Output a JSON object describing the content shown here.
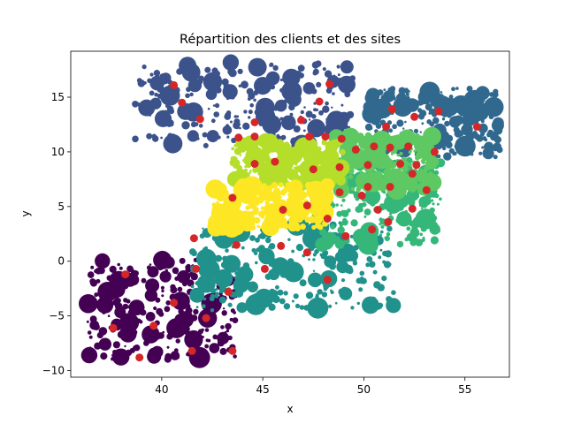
{
  "chart_data": {
    "type": "scatter",
    "title": "Répartition des clients et des sites",
    "xlabel": "x",
    "ylabel": "y",
    "xlim": [
      35.5,
      57.2
    ],
    "ylim": [
      -10.6,
      19.2
    ],
    "xticks": [
      40,
      45,
      50,
      55
    ],
    "yticks": [
      -10,
      -5,
      0,
      5,
      10,
      15
    ],
    "xtick_labels": [
      "40",
      "45",
      "50",
      "55"
    ],
    "ytick_labels": [
      "−10",
      "−5",
      "0",
      "5",
      "10",
      "15"
    ],
    "grid": false,
    "legend": "none",
    "colors": {
      "clusters": [
        "#440154",
        "#3b528b",
        "#31688e",
        "#21918c",
        "#35b779",
        "#5ec962",
        "#b5de2b",
        "#fde725"
      ],
      "sites": "#d62728"
    },
    "clusters": [
      {
        "color": "#440154",
        "x_range": [
          36.3,
          43.8
        ],
        "y_range": [
          -9.0,
          0.2
        ]
      },
      {
        "color": "#3b528b",
        "x_range": [
          38.5,
          49.5
        ],
        "y_range": [
          10.5,
          18.2
        ]
      },
      {
        "color": "#31688e",
        "x_range": [
          50.2,
          56.8
        ],
        "y_range": [
          9.5,
          15.8
        ]
      },
      {
        "color": "#21918c",
        "x_range": [
          41.5,
          51.5
        ],
        "y_range": [
          -4.5,
          3.5
        ]
      },
      {
        "color": "#35b779",
        "x_range": [
          47.8,
          53.8
        ],
        "y_range": [
          1.5,
          9.5
        ]
      },
      {
        "color": "#5ec962",
        "x_range": [
          48.5,
          53.5
        ],
        "y_range": [
          6.5,
          11.5
        ]
      },
      {
        "color": "#b5de2b",
        "x_range": [
          43.5,
          49.0
        ],
        "y_range": [
          7.0,
          11.0
        ]
      },
      {
        "color": "#fde725",
        "x_range": [
          42.5,
          48.2
        ],
        "y_range": [
          3.0,
          7.0
        ]
      }
    ],
    "sites": [
      {
        "x": 40.6,
        "y": 16.1
      },
      {
        "x": 41.0,
        "y": 14.5
      },
      {
        "x": 41.9,
        "y": 13.0
      },
      {
        "x": 43.8,
        "y": 11.3
      },
      {
        "x": 44.6,
        "y": 11.4
      },
      {
        "x": 44.6,
        "y": 12.7
      },
      {
        "x": 46.9,
        "y": 12.9
      },
      {
        "x": 47.8,
        "y": 14.6
      },
      {
        "x": 48.3,
        "y": 16.2
      },
      {
        "x": 48.9,
        "y": 11.2
      },
      {
        "x": 47.3,
        "y": 11.4
      },
      {
        "x": 48.1,
        "y": 11.4
      },
      {
        "x": 49.6,
        "y": 10.2
      },
      {
        "x": 50.5,
        "y": 10.5
      },
      {
        "x": 51.1,
        "y": 12.3
      },
      {
        "x": 51.4,
        "y": 13.9
      },
      {
        "x": 52.5,
        "y": 13.2
      },
      {
        "x": 53.7,
        "y": 13.7
      },
      {
        "x": 53.5,
        "y": 10.0
      },
      {
        "x": 52.2,
        "y": 10.5
      },
      {
        "x": 51.3,
        "y": 10.4
      },
      {
        "x": 51.8,
        "y": 8.9
      },
      {
        "x": 52.4,
        "y": 8.0
      },
      {
        "x": 52.6,
        "y": 8.8
      },
      {
        "x": 55.6,
        "y": 12.3
      },
      {
        "x": 44.6,
        "y": 8.9
      },
      {
        "x": 45.6,
        "y": 9.1
      },
      {
        "x": 47.5,
        "y": 8.4
      },
      {
        "x": 48.8,
        "y": 8.6
      },
      {
        "x": 50.2,
        "y": 8.8
      },
      {
        "x": 48.8,
        "y": 6.3
      },
      {
        "x": 49.9,
        "y": 6.0
      },
      {
        "x": 50.2,
        "y": 6.8
      },
      {
        "x": 51.3,
        "y": 6.8
      },
      {
        "x": 53.1,
        "y": 6.5
      },
      {
        "x": 43.5,
        "y": 5.8
      },
      {
        "x": 46.0,
        "y": 4.7
      },
      {
        "x": 47.2,
        "y": 5.1
      },
      {
        "x": 48.2,
        "y": 3.9
      },
      {
        "x": 50.7,
        "y": 4.7
      },
      {
        "x": 52.4,
        "y": 4.8
      },
      {
        "x": 51.2,
        "y": 3.6
      },
      {
        "x": 50.4,
        "y": 2.9
      },
      {
        "x": 49.1,
        "y": 2.3
      },
      {
        "x": 41.6,
        "y": 2.1
      },
      {
        "x": 43.7,
        "y": 1.5
      },
      {
        "x": 45.9,
        "y": 1.4
      },
      {
        "x": 47.2,
        "y": 0.8
      },
      {
        "x": 45.1,
        "y": -0.7
      },
      {
        "x": 48.2,
        "y": -1.7
      },
      {
        "x": 41.7,
        "y": -0.7
      },
      {
        "x": 38.2,
        "y": -1.2
      },
      {
        "x": 40.6,
        "y": -3.8
      },
      {
        "x": 43.3,
        "y": -2.8
      },
      {
        "x": 42.2,
        "y": -5.2
      },
      {
        "x": 39.6,
        "y": -5.9
      },
      {
        "x": 37.6,
        "y": -6.1
      },
      {
        "x": 41.5,
        "y": -8.2
      },
      {
        "x": 43.5,
        "y": -8.2
      },
      {
        "x": 38.9,
        "y": -8.8
      }
    ]
  }
}
